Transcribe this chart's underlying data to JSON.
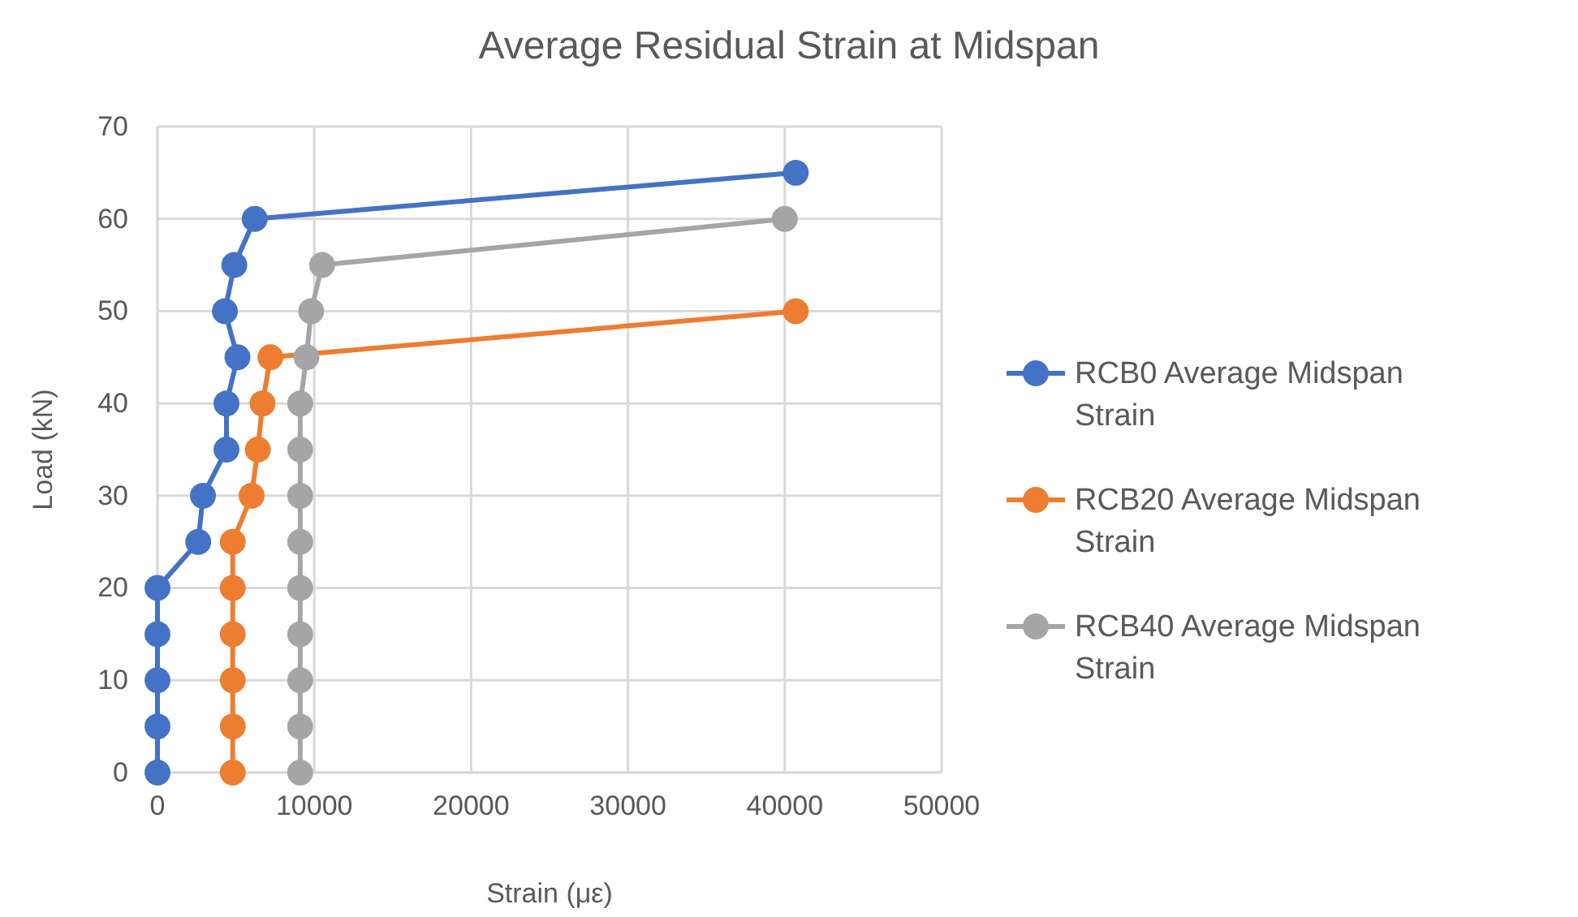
{
  "chart_data": {
    "type": "line",
    "title": "Average Residual Strain at Midspan",
    "xlabel": "Strain (με)",
    "ylabel": "Load (kN)",
    "xlim": [
      0,
      50000
    ],
    "xticks": [
      0,
      10000,
      20000,
      30000,
      40000,
      50000
    ],
    "ylim": [
      0,
      70
    ],
    "yticks": [
      0,
      10,
      20,
      30,
      40,
      50,
      60,
      70
    ],
    "grid": true,
    "legend": "right",
    "marker": "circle",
    "line_style": "solid",
    "series": [
      {
        "name": "RCB0 Average Midspan Strain",
        "color": "#4472c4",
        "x": [
          0,
          0,
          0,
          0,
          0,
          2600,
          2900,
          4400,
          4400,
          5100,
          4300,
          4900,
          6200,
          40700
        ],
        "values": [
          0,
          5,
          10,
          15,
          20,
          25,
          30,
          35,
          40,
          45,
          50,
          55,
          60,
          65
        ]
      },
      {
        "name": "RCB20 Average Midspan Strain",
        "color": "#ed7d31",
        "x": [
          4800,
          4800,
          4800,
          4800,
          4800,
          4800,
          6000,
          6400,
          6700,
          7200,
          40700
        ],
        "values": [
          0,
          5,
          10,
          15,
          20,
          25,
          30,
          35,
          40,
          45,
          50
        ]
      },
      {
        "name": "RCB40 Average Midspan Strain",
        "color": "#a5a5a5",
        "x": [
          9100,
          9100,
          9100,
          9100,
          9100,
          9100,
          9100,
          9100,
          9100,
          9500,
          9800,
          10500,
          40000
        ],
        "values": [
          0,
          5,
          10,
          15,
          20,
          25,
          30,
          35,
          40,
          45,
          50,
          55,
          60
        ]
      }
    ]
  }
}
